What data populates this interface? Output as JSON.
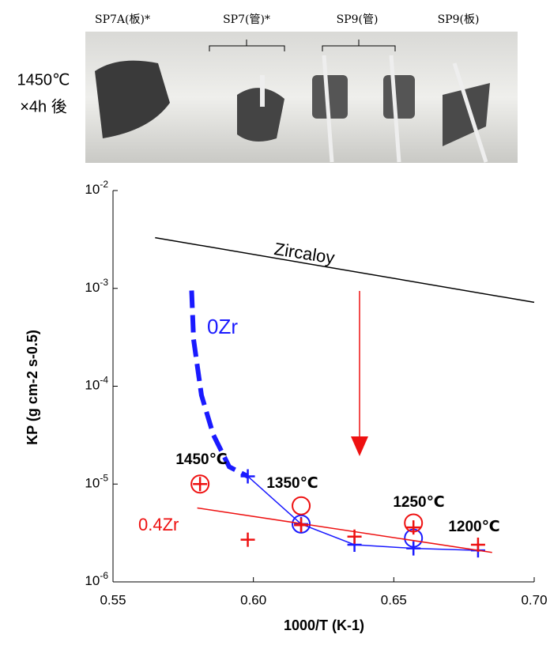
{
  "photo": {
    "labels": [
      "SP7A(板)*",
      "SP7(管)*",
      "SP9(管)",
      "SP9(板)"
    ],
    "caption": [
      "1450℃",
      "×4h 後"
    ]
  },
  "chart_data": {
    "type": "line",
    "x_label": "1000/T (K-1)",
    "y_label": "KP (g cm-2 s-0.5)",
    "xlim": [
      0.55,
      0.7
    ],
    "xticks": [
      0.55,
      {
        "value": 0.6,
        "label": "0.60"
      },
      0.65,
      {
        "value": 0.7,
        "label": "0.70"
      }
    ],
    "ylim": [
      1e-06,
      0.01
    ],
    "log_y": true,
    "yticks": [
      {
        "value": 0.01,
        "label": "10-2"
      },
      {
        "value": 0.001,
        "label": "10-3"
      },
      {
        "value": 0.0001,
        "label": "10-4"
      },
      {
        "value": 1e-05,
        "label": "10-5"
      },
      {
        "value": 1e-06,
        "label": "10-6"
      }
    ],
    "series": [
      {
        "name": "Zircaloy",
        "color": "#000000",
        "marker": "none",
        "x": [
          0.565,
          0.7
        ],
        "values": [
          0.0033,
          0.00072
        ]
      },
      {
        "name": "0Zr",
        "color": "#1a1aff",
        "marker": "none",
        "dash": true,
        "x": [
          0.578,
          0.5787,
          0.5815,
          0.5857,
          0.5914,
          0.598
        ],
        "values": [
          0.00095,
          0.0003,
          8.1e-05,
          3.2e-05,
          1.5e-05,
          1.2e-05
        ]
      },
      {
        "color": "#1a1aff",
        "marker": "plus",
        "x": [
          0.598,
          0.617,
          0.636,
          0.657,
          0.68
        ],
        "values": [
          1.2e-05,
          3.9e-06,
          2.4e-06,
          2.2e-06,
          2.1e-06
        ]
      },
      {
        "color": "#1a1aff",
        "marker": "circle",
        "x": [
          0.617,
          0.657
        ],
        "values": [
          3.9e-06,
          2.8e-06
        ]
      },
      {
        "name": "0.4Zr",
        "color": "#ee1111",
        "marker": "none",
        "x": [
          0.58,
          0.685
        ],
        "values": [
          5.7e-06,
          2e-06
        ]
      },
      {
        "color": "#ee1111",
        "marker": "plus",
        "x": [
          0.581,
          0.598,
          0.617,
          0.636,
          0.657,
          0.68
        ],
        "values": [
          1e-05,
          2.7e-06,
          3.8e-06,
          2.9e-06,
          3.6e-06,
          2.4e-06
        ]
      },
      {
        "color": "#ee1111",
        "marker": "circle",
        "x": [
          0.581,
          0.617,
          0.657
        ],
        "values": [
          1e-05,
          6e-06,
          4e-06
        ]
      }
    ],
    "annotations": [
      "1450℃",
      "1350℃",
      "1250℃",
      "1200℃"
    ]
  }
}
